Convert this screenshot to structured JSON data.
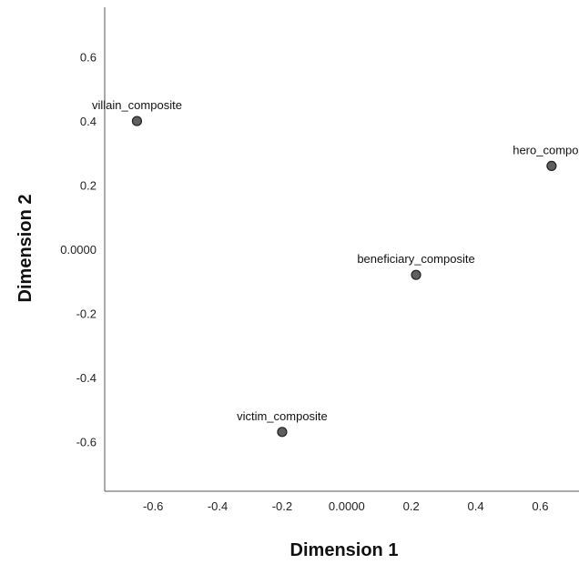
{
  "chart_data": {
    "type": "scatter",
    "title": "",
    "xlabel": "Dimension 1",
    "ylabel": "Dimension 2",
    "xlim": [
      -0.75,
      0.72
    ],
    "ylim": [
      -0.755,
      0.755
    ],
    "x_ticks": [
      -0.6,
      -0.4,
      -0.2,
      0.0,
      0.2,
      0.4,
      0.6
    ],
    "x_tick_labels": [
      "-0.6",
      "-0.4",
      "-0.2",
      "0.0000",
      "0.2",
      "0.4",
      "0.6"
    ],
    "y_ticks": [
      0.6,
      0.4,
      0.2,
      0.0,
      -0.2,
      -0.4,
      -0.6
    ],
    "y_tick_labels": [
      "0.6",
      "0.4",
      "0.2",
      "0.0000",
      "-0.2",
      "-0.4",
      "-0.6"
    ],
    "grid": false,
    "points": [
      {
        "label": "villain_composite",
        "x": -0.65,
        "y": 0.4
      },
      {
        "label": "hero_composit",
        "x": 0.635,
        "y": 0.26
      },
      {
        "label": "beneficiary_composite",
        "x": 0.215,
        "y": -0.08
      },
      {
        "label": "victim_composite",
        "x": -0.2,
        "y": -0.57
      }
    ]
  }
}
